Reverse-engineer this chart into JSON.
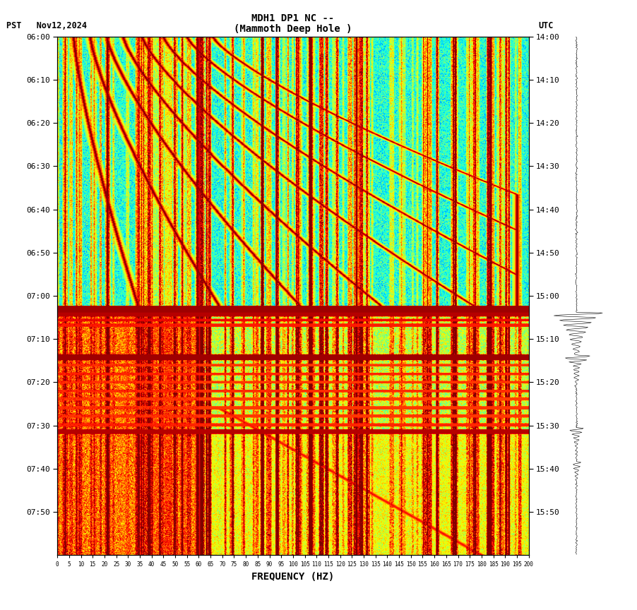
{
  "title_line1": "MDH1 DP1 NC --",
  "title_line2": "(Mammoth Deep Hole )",
  "label_left": "PST   Nov12,2024",
  "label_right": "UTC",
  "xlabel": "FREQUENCY (HZ)",
  "yticks_left": [
    "06:00",
    "06:10",
    "06:20",
    "06:30",
    "06:40",
    "06:50",
    "07:00",
    "07:10",
    "07:20",
    "07:30",
    "07:40",
    "07:50"
  ],
  "yticks_right": [
    "14:00",
    "14:10",
    "14:20",
    "14:30",
    "14:40",
    "14:50",
    "15:00",
    "15:10",
    "15:20",
    "15:30",
    "15:40",
    "15:50"
  ],
  "xtick_values": [
    0,
    5,
    10,
    15,
    20,
    25,
    30,
    35,
    40,
    45,
    50,
    55,
    60,
    65,
    70,
    75,
    80,
    85,
    90,
    95,
    100,
    105,
    110,
    115,
    120,
    125,
    130,
    135,
    140,
    145,
    150,
    155,
    160,
    165,
    170,
    175,
    180,
    185,
    190,
    195,
    200
  ],
  "xtick_labels": [
    "0",
    "5",
    "10",
    "15",
    "20",
    "25",
    "30",
    "35",
    "40",
    "45",
    "50",
    "55",
    "60",
    "65",
    "70",
    "75",
    "80",
    "85",
    "90",
    "95",
    "100",
    "105",
    "110",
    "115",
    "120",
    "125",
    "130",
    "135",
    "140",
    "145",
    "150",
    "155",
    "160",
    "165",
    "170",
    "175",
    "180",
    "185",
    "190",
    "195",
    "200"
  ],
  "freq_max": 200,
  "time_bins": 760,
  "freq_bins": 700
}
